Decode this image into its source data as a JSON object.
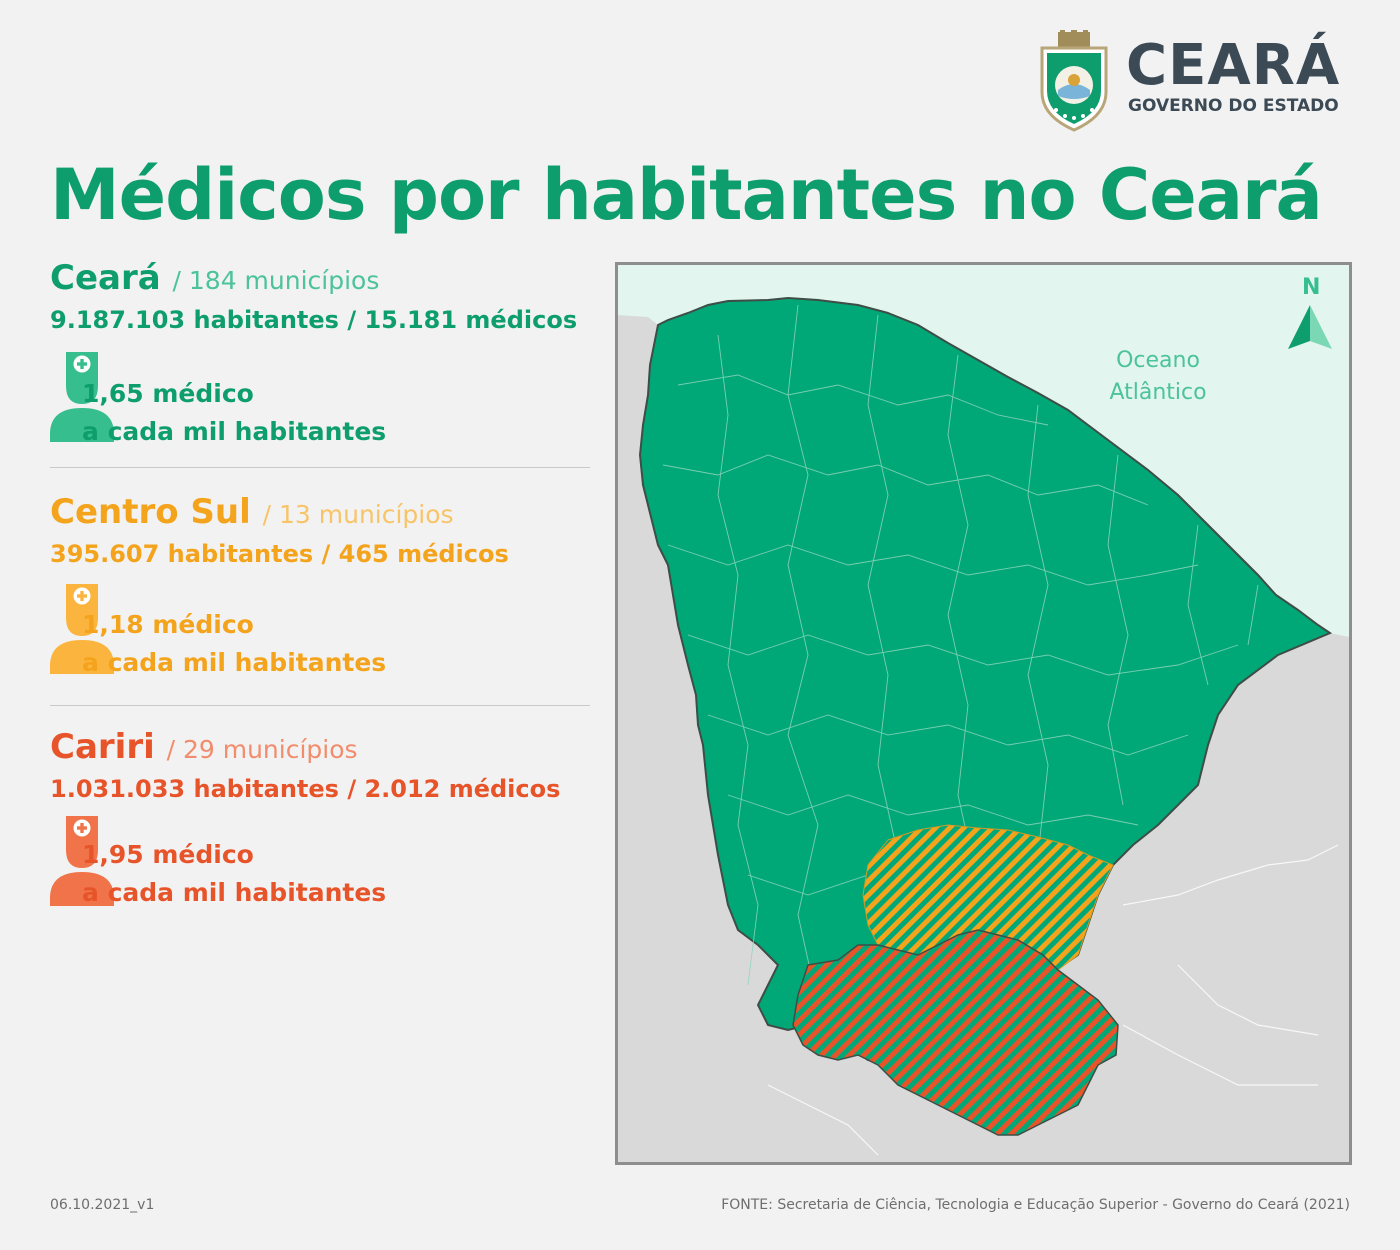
{
  "logo": {
    "name": "CEARÁ",
    "subtitle": "GOVERNO DO ESTADO"
  },
  "title": "Médicos por habitantes no Ceará",
  "regions": [
    {
      "name": "Ceará",
      "municipalities": "/ 184 municípios",
      "stats": "9.187.103 habitantes / 15.181 médicos",
      "ratio_line1": "1,65 médico",
      "ratio_line2": "a cada mil habitantes",
      "doctors_per_thousand": 1.65,
      "color": "#0e9e6e",
      "light_color": "#4cc39a",
      "icon_color": "#36be8f"
    },
    {
      "name": "Centro Sul",
      "municipalities": "/ 13 municípios",
      "stats": "395.607 habitantes / 465 médicos",
      "ratio_line1": "1,18 médico",
      "ratio_line2": "a cada mil habitantes",
      "doctors_per_thousand": 1.18,
      "color": "#f4a31c",
      "light_color": "#f8c468",
      "icon_color": "#fbb43e"
    },
    {
      "name": "Cariri",
      "municipalities": "/ 29 municípios",
      "stats": "1.031.033 habitantes / 2.012 médicos",
      "ratio_line1": "1,95 médico",
      "ratio_line2": "a cada mil habitantes",
      "doctors_per_thousand": 1.95,
      "color": "#e8542a",
      "light_color": "#f18d6c",
      "icon_color": "#f0734a"
    }
  ],
  "map": {
    "ocean_line1": "Oceano",
    "ocean_line2": "Atlântico",
    "north_label": "N",
    "state_color": "#00a878",
    "ocean_color": "#e2f5ef",
    "land_color": "#d9d9d9",
    "centro_sul_hatch": "#f4a31c",
    "cariri_hatch": "#e8542a"
  },
  "footer": {
    "version": "06.10.2021_v1",
    "source": "FONTE: Secretaria de Ciência, Tecnologia e Educação Superior - Governo do Ceará (2021)"
  }
}
